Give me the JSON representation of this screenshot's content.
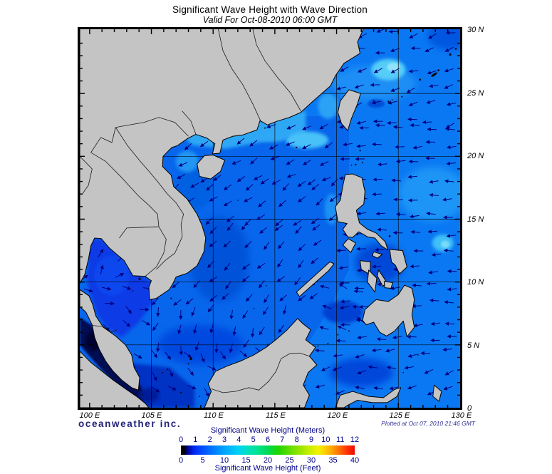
{
  "header": {
    "title": "Significant Wave Height with Wave Direction",
    "subtitle": "Valid For Oct-08-2010 06:00 GMT"
  },
  "axes": {
    "lat": [
      {
        "label": "30 N",
        "deg": 30
      },
      {
        "label": "25 N",
        "deg": 25
      },
      {
        "label": "20 N",
        "deg": 20
      },
      {
        "label": "15 N",
        "deg": 15
      },
      {
        "label": "10 N",
        "deg": 10
      },
      {
        "label": "5 N",
        "deg": 5
      },
      {
        "label": "0",
        "deg": 0
      }
    ],
    "lon": [
      {
        "label": "100 E",
        "deg": 100
      },
      {
        "label": "105 E",
        "deg": 105
      },
      {
        "label": "110 E",
        "deg": 110
      },
      {
        "label": "115 E",
        "deg": 115
      },
      {
        "label": "120 E",
        "deg": 120
      },
      {
        "label": "125 E",
        "deg": 125
      },
      {
        "label": "130 E",
        "deg": 130
      }
    ]
  },
  "legend": {
    "title_meters": "Significant Wave Height (Meters)",
    "title_feet": "Significant Wave Height (Feet)",
    "meters_ticks": [
      "0",
      "1",
      "2",
      "3",
      "4",
      "5",
      "6",
      "7",
      "8",
      "9",
      "10",
      "11",
      "12"
    ],
    "feet_ticks": [
      "0",
      "5",
      "10",
      "15",
      "20",
      "25",
      "30",
      "35",
      "40"
    ],
    "colorbar_stops": [
      [
        0,
        "#000000"
      ],
      [
        0.02,
        "#000000"
      ],
      [
        0.035,
        "#000085"
      ],
      [
        0.07,
        "#0020e8"
      ],
      [
        0.1,
        "#003cff"
      ],
      [
        0.16,
        "#0068ff"
      ],
      [
        0.22,
        "#0092ff"
      ],
      [
        0.28,
        "#00b6ff"
      ],
      [
        0.33,
        "#00d2f4"
      ],
      [
        0.38,
        "#00e0c4"
      ],
      [
        0.44,
        "#00e292"
      ],
      [
        0.5,
        "#00da55"
      ],
      [
        0.56,
        "#1ed400"
      ],
      [
        0.62,
        "#5cdc00"
      ],
      [
        0.68,
        "#94e400"
      ],
      [
        0.74,
        "#caee00"
      ],
      [
        0.79,
        "#f2f200"
      ],
      [
        0.83,
        "#ffce00"
      ],
      [
        0.87,
        "#ffa200"
      ],
      [
        0.91,
        "#ff7000"
      ],
      [
        0.955,
        "#ff3400"
      ],
      [
        1,
        "#ee0800"
      ]
    ]
  },
  "branding": {
    "company": "oceanweather inc.",
    "plotted": "Plotted at Oct 07, 2010 21:46 GMT"
  },
  "map": {
    "colors": {
      "sea_base": "#0a78f3",
      "south_china_sea": "#0766ec",
      "land": "#c4c4c4",
      "coastline": "#000000",
      "arrow": "#000080",
      "grid": "#000000"
    },
    "wave_direction_regions": [
      {
        "name": "east-china-sea",
        "lon": [
          120.8,
          129.8
        ],
        "lat": [
          22.6,
          29.9
        ],
        "dir_deg": 195,
        "jitter_deg": 18
      },
      {
        "name": "taiwan-strait-south-china-coast",
        "lon": [
          108.0,
          120.7
        ],
        "lat": [
          18.0,
          22.6
        ],
        "dir_deg": 210,
        "jitter_deg": 14
      },
      {
        "name": "north-south-china-sea",
        "lon": [
          105.8,
          120.5
        ],
        "lat": [
          14.5,
          18.0
        ],
        "dir_deg": 218,
        "jitter_deg": 12
      },
      {
        "name": "central-south-china-sea",
        "lon": [
          105.8,
          119.5
        ],
        "lat": [
          8.0,
          14.5
        ],
        "dir_deg": 226,
        "jitter_deg": 14
      },
      {
        "name": "philippine-sea",
        "lon": [
          121.0,
          129.8
        ],
        "lat": [
          4.5,
          22.4
        ],
        "dir_deg": 182,
        "jitter_deg": 9
      },
      {
        "name": "gulf-of-thailand-north",
        "lon": [
          99.5,
          104.9
        ],
        "lat": [
          9.5,
          13.2
        ],
        "dir_deg": 55,
        "jitter_deg": 30
      },
      {
        "name": "gulf-of-thailand-south",
        "lon": [
          99.8,
          105.2
        ],
        "lat": [
          5.8,
          9.5
        ],
        "dir_deg": -25,
        "jitter_deg": 30
      },
      {
        "name": "south-china-sea-south",
        "lon": [
          105.8,
          116.5
        ],
        "lat": [
          4.5,
          8.0
        ],
        "dir_deg": 255,
        "jitter_deg": 28
      },
      {
        "name": "karimata-natuna",
        "lon": [
          103.5,
          117.0
        ],
        "lat": [
          0.5,
          4.5
        ],
        "dir_deg": 310,
        "jitter_deg": 35
      },
      {
        "name": "sulu-sea",
        "lon": [
          119.3,
          123.3
        ],
        "lat": [
          5.8,
          9.3
        ],
        "dir_deg": 165,
        "jitter_deg": 30
      },
      {
        "name": "celebes-sea",
        "lon": [
          117.8,
          129.8
        ],
        "lat": [
          0.8,
          4.4
        ],
        "dir_deg": 188,
        "jitter_deg": 22
      }
    ]
  }
}
